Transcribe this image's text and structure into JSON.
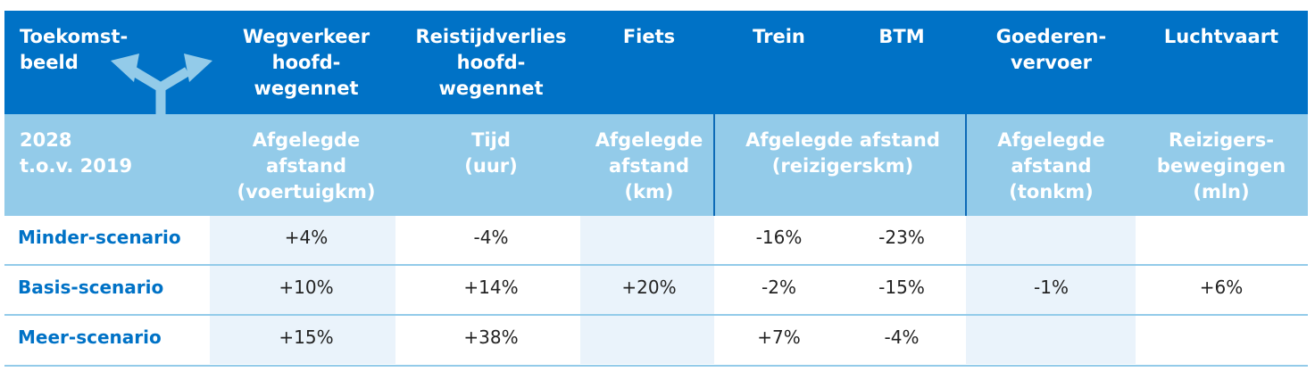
{
  "header": {
    "col0": "Toekomst-\nbeeld",
    "col1": "Wegverkeer\nhoofd-\nwegennet",
    "col2": "Reistijdverlies\nhoofd-\nwegennet",
    "col3": "Fiets",
    "col4": "Trein",
    "col5": "BTM",
    "col6": "Goederen-\nvervoer",
    "col7": "Luchtvaart",
    "arrow_icon": "split-arrow-icon"
  },
  "subheader": {
    "col0": "2028\nt.o.v. 2019",
    "col1": "Afgelegde\nafstand\n(voertuigkm)",
    "col2": "Tijd\n(uur)",
    "col3": "Afgelegde\nafstand\n(km)",
    "col45": "Afgelegde afstand\n(reizigerskm)",
    "col6": "Afgelegde\nafstand\n(tonkm)",
    "col7": "Reizigers-\nbewegingen\n(mln)"
  },
  "rows": [
    {
      "label": "Minder-scenario",
      "values": [
        "+4%",
        "-4%",
        "",
        "-16%",
        "-23%",
        "",
        ""
      ]
    },
    {
      "label": "Basis-scenario",
      "values": [
        "+10%",
        "+14%",
        "+20%",
        "-2%",
        "-15%",
        "-1%",
        "+6%"
      ]
    },
    {
      "label": "Meer-scenario",
      "values": [
        "+15%",
        "+38%",
        "",
        "+7%",
        "-4%",
        "",
        ""
      ]
    }
  ],
  "colors": {
    "header_blue": "#0072c6",
    "subheader_light_blue": "#93cbe9",
    "row_shade": "#eaf3fb",
    "label_blue": "#0072c6"
  }
}
